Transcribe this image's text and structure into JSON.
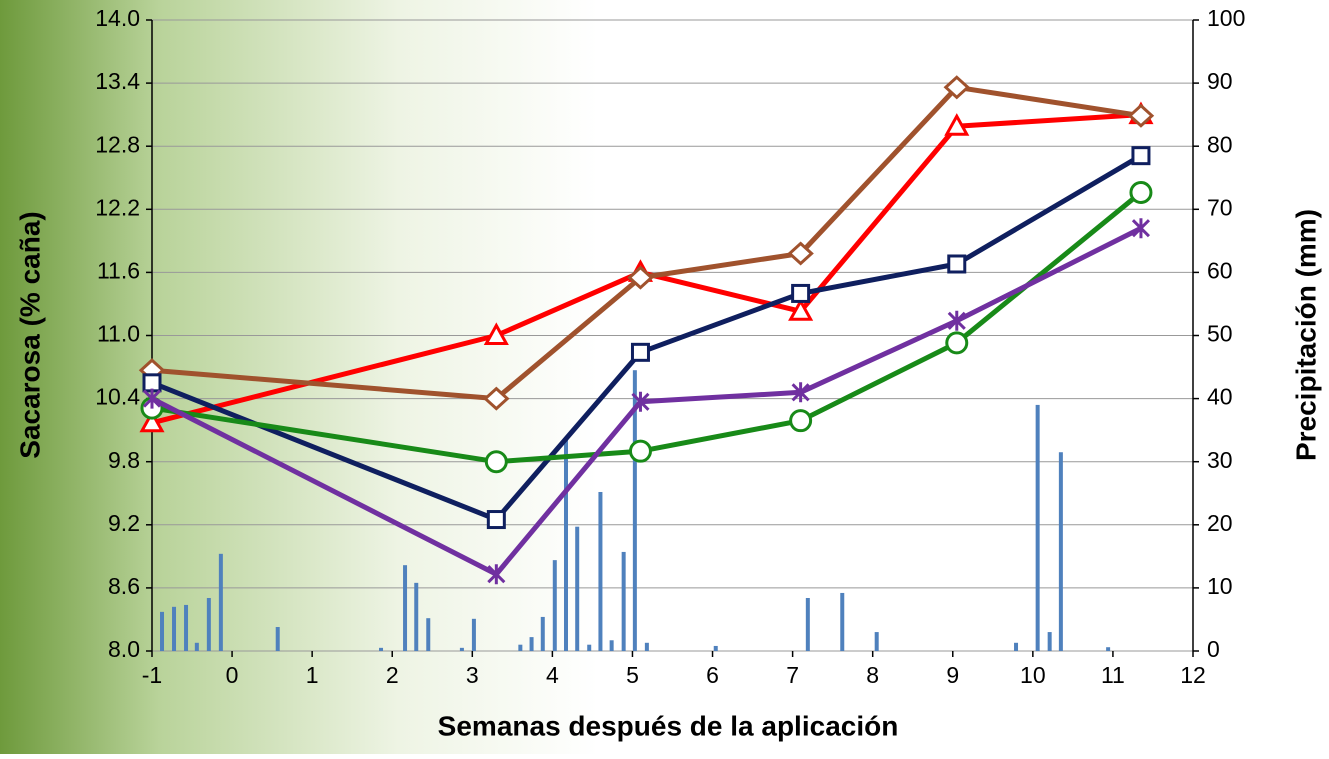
{
  "chart_data": {
    "type": "line",
    "xlabel": "Semanas después de la aplicación",
    "ylabel": "Sacarosa (% caña)",
    "y2label": "Precipitación (mm)",
    "xlim": [
      -1,
      12
    ],
    "xticks": [
      -1,
      0,
      1,
      2,
      3,
      4,
      5,
      6,
      7,
      8,
      9,
      10,
      11,
      12
    ],
    "ylim": [
      8,
      14
    ],
    "yticks": [
      {
        "value": 8,
        "label": "8.0"
      },
      8.6,
      9.2,
      9.8,
      10.4,
      {
        "value": 11,
        "label": "11.0"
      },
      11.6,
      12.2,
      12.8,
      13.4,
      {
        "value": 14,
        "label": "14.0"
      }
    ],
    "y2lim": [
      0,
      100
    ],
    "y2ticks": [
      0,
      10,
      20,
      30,
      40,
      50,
      60,
      70,
      80,
      90,
      100
    ],
    "grid": true,
    "x": [
      -1,
      3.3,
      5.1,
      7.1,
      9.05,
      11.35
    ],
    "series": [
      {
        "type": "bar",
        "axis": "y2",
        "color": "#4f81bd",
        "x": [
          -0.875,
          -0.725,
          -0.575,
          -0.44,
          -0.29,
          -0.14,
          0.57,
          1.86,
          2.16,
          2.3,
          2.45,
          2.87,
          3.02,
          3.6,
          3.74,
          3.88,
          4.03,
          4.17,
          4.31,
          4.46,
          4.6,
          4.74,
          4.89,
          5.03,
          5.18,
          6.04,
          7.19,
          7.62,
          8.05,
          9.79,
          10.06,
          10.21,
          10.35,
          10.94
        ],
        "values": [
          6.2,
          7,
          7.3,
          1.3,
          8.4,
          15.4,
          3.8,
          0.5,
          13.6,
          10.8,
          5.2,
          0.5,
          5.1,
          1,
          2.2,
          5.4,
          14.4,
          33.4,
          19.7,
          1,
          25.2,
          1.7,
          15.7,
          44.5,
          1.3,
          0.8,
          8.4,
          9.2,
          3,
          1.3,
          39,
          3,
          31.5,
          0.6
        ]
      },
      {
        "type": "line",
        "marker": "triangle",
        "color": "#ff0000",
        "values": [
          10.17,
          11.0,
          11.6,
          11.23,
          12.99,
          13.1
        ]
      },
      {
        "type": "line",
        "marker": "diamond",
        "color": "#a0522d",
        "values": [
          10.67,
          10.4,
          11.55,
          11.78,
          13.36,
          13.09
        ]
      },
      {
        "type": "line",
        "marker": "square",
        "color": "#0f1f5f",
        "values": [
          10.55,
          9.25,
          10.84,
          11.4,
          11.68,
          12.71
        ]
      },
      {
        "type": "line",
        "marker": "circle",
        "color": "#188a18",
        "values": [
          10.31,
          9.8,
          9.9,
          10.19,
          10.93,
          12.36
        ]
      },
      {
        "type": "line",
        "marker": "asterisk",
        "color": "#7030a0",
        "values": [
          10.4,
          8.73,
          10.37,
          10.46,
          11.14,
          12.02
        ]
      }
    ]
  }
}
